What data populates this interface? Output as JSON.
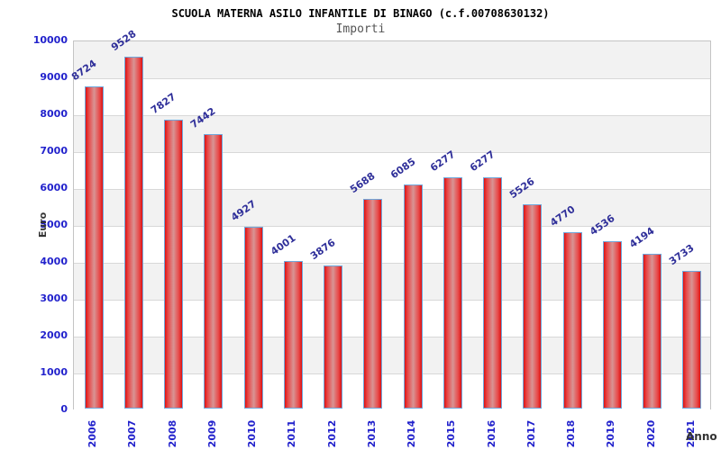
{
  "header": {
    "title": "SCUOLA MATERNA ASILO INFANTILE DI BINAGO (c.f.00708630132)",
    "subtitle": "Importi"
  },
  "chart_data": {
    "type": "bar",
    "title": "SCUOLA MATERNA ASILO INFANTILE DI BINAGO (c.f.00708630132)",
    "subtitle": "Importi",
    "xlabel": "Anno",
    "ylabel": "Euro",
    "categories": [
      "2006",
      "2007",
      "2008",
      "2009",
      "2010",
      "2011",
      "2012",
      "2013",
      "2014",
      "2015",
      "2016",
      "2017",
      "2018",
      "2019",
      "2020",
      "2021"
    ],
    "values": [
      8724,
      9528,
      7827,
      7442,
      4927,
      4001,
      3876,
      5688,
      6085,
      6277,
      6277,
      5526,
      4770,
      4536,
      4194,
      3733
    ],
    "ylim": [
      0,
      10000
    ],
    "ytick_step": 1000,
    "ytick_labels": [
      "0",
      "1000",
      "2000",
      "3000",
      "4000",
      "5000",
      "6000",
      "7000",
      "8000",
      "9000",
      "10000"
    ],
    "grid": true,
    "legend": "none",
    "bands_alternating": true,
    "colors": {
      "bar_fill_edge": "#dd1212",
      "bar_fill_inner": "#e84848",
      "bar_fill_mid": "#d89494",
      "bar_border": "#6fa8dc",
      "value_label": "#2e2e99",
      "tick_label": "#2222cc",
      "band_gray": "#f2f2f2",
      "band_white": "#ffffff",
      "gridline": "#d8d8d8",
      "plot_border": "#c4c4c4",
      "title": "#000000",
      "subtitle": "#555555",
      "axis_title": "#333333"
    }
  }
}
